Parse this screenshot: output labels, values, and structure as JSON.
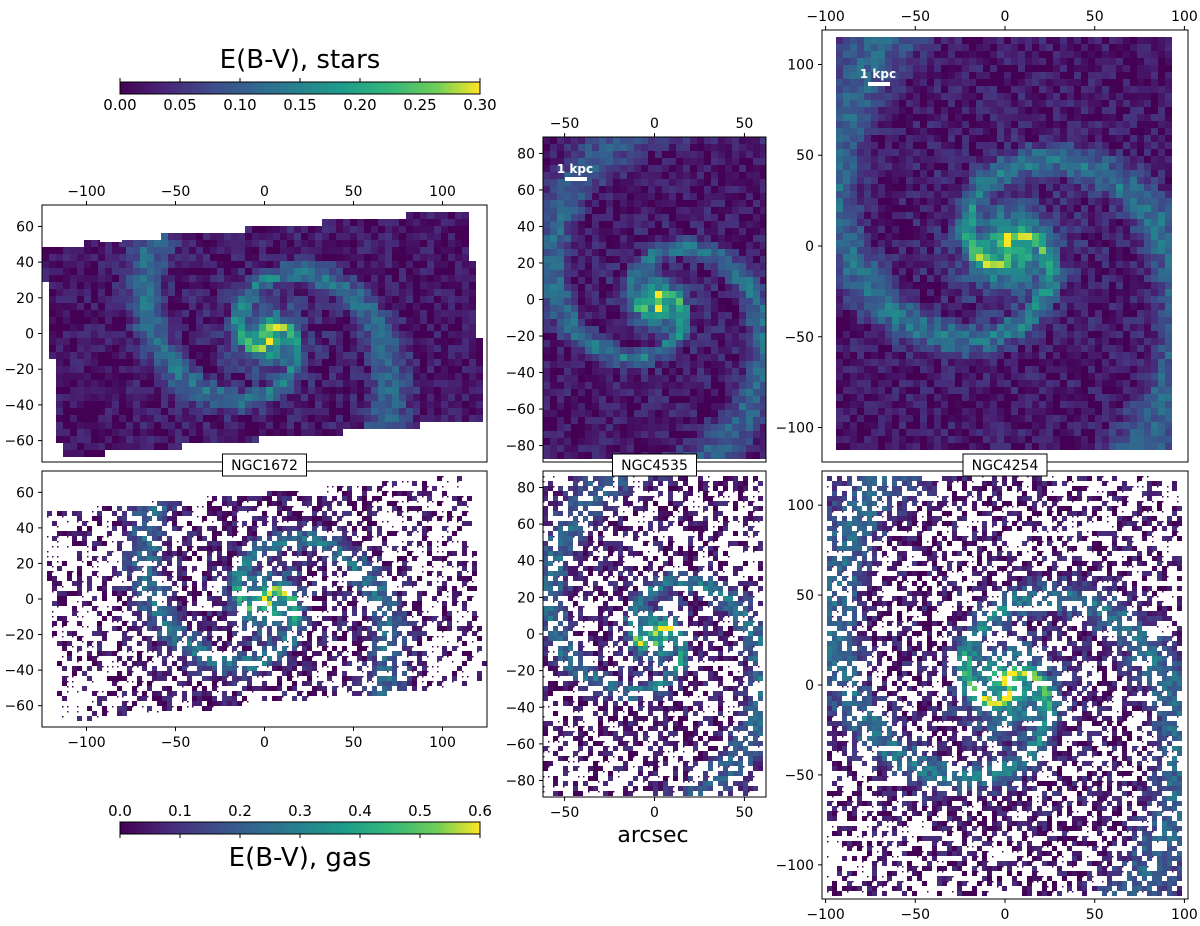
{
  "chart_data": {
    "type": "heatmap",
    "colormap": "viridis",
    "xlabel": "arcsec",
    "colorbars": [
      {
        "label": "E(B-V), stars",
        "range": [
          0,
          0.3
        ],
        "ticks": [
          "0.00",
          "0.05",
          "0.10",
          "0.15",
          "0.20",
          "0.25",
          "0.30"
        ]
      },
      {
        "label": "E(B-V), gas",
        "range": [
          0,
          0.6
        ],
        "ticks": [
          "0.0",
          "0.1",
          "0.2",
          "0.3",
          "0.4",
          "0.5",
          "0.6"
        ]
      }
    ],
    "galaxies": [
      {
        "name": "NGC1672",
        "scale_bar_label": "1 kpc",
        "xlim": [
          -125,
          125
        ],
        "ylim": [
          -72,
          72
        ],
        "xticks": [
          "-100",
          "-50",
          "0",
          "50",
          "100"
        ],
        "yticks": [
          "60",
          "40",
          "20",
          "0",
          "-20",
          "-40",
          "-60"
        ]
      },
      {
        "name": "NGC4535",
        "scale_bar_label": "1 kpc",
        "xlim": [
          -62,
          62
        ],
        "ylim": [
          -89,
          89
        ],
        "xticks": [
          "-50",
          "0",
          "50"
        ],
        "yticks": [
          "80",
          "60",
          "40",
          "20",
          "0",
          "-20",
          "-40",
          "-60",
          "-80"
        ]
      },
      {
        "name": "NGC4254",
        "scale_bar_label": "1 kpc",
        "xlim": [
          -102,
          102
        ],
        "ylim": [
          -119,
          119
        ],
        "xticks": [
          "-100",
          "-50",
          "0",
          "50",
          "100"
        ],
        "yticks": [
          "100",
          "50",
          "0",
          "-50",
          "-100"
        ]
      }
    ],
    "colors": {
      "v0": "#440154",
      "v1": "#3b528b",
      "v2": "#21918c",
      "v3": "#5ec962",
      "v4": "#fde725"
    }
  }
}
